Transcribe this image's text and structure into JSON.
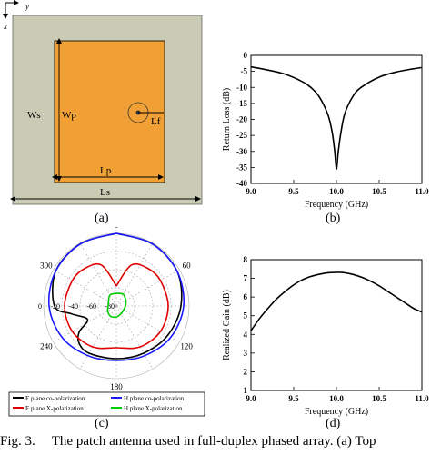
{
  "panels": {
    "a": {
      "label": "(a)",
      "axis_x": "x",
      "axis_y": "y",
      "labels": {
        "ws": "Ws",
        "wp": "Wp",
        "lf": "Lf",
        "lp": "Lp",
        "ls": "Ls"
      },
      "colors": {
        "substrate": "#c9cbb4",
        "patch": "#f0a035",
        "patch_border": "#2a1a00"
      }
    },
    "b": {
      "label": "(b)"
    },
    "c": {
      "label": "(c)",
      "angle_labels": [
        "0",
        "60",
        "120",
        "180",
        "240",
        "300"
      ],
      "radial_labels": [
        "0",
        "-20",
        "-40",
        "-60",
        "-80"
      ],
      "legend": [
        {
          "text": "E plane co-polarization",
          "color": "#000000"
        },
        {
          "text": "H plane co-polarization",
          "color": "#1a1aff"
        },
        {
          "text": "E plane X-polarization",
          "color": "#e00000"
        },
        {
          "text": "H plane X-polarization",
          "color": "#00cc00"
        }
      ]
    },
    "d": {
      "label": "(d)"
    }
  },
  "caption": {
    "fig": "Fig. 3.",
    "text": "The patch antenna used in full-duplex phased array. (a) Top"
  },
  "chart_data": [
    {
      "type": "line",
      "ylabel": "Return Loss (dB)",
      "xlabel": "Frequency (GHz)",
      "xlim": [
        9.0,
        11.0
      ],
      "ylim": [
        -40,
        0
      ],
      "xticks": [
        "9.0",
        "9.5",
        "10.0",
        "10.5",
        "11.0"
      ],
      "yticks": [
        "0",
        "-5",
        "-10",
        "-15",
        "-20",
        "-25",
        "-30",
        "-35",
        "-40"
      ],
      "series": [
        {
          "color": "#000000",
          "x": [
            9.0,
            9.2,
            9.4,
            9.6,
            9.7,
            9.8,
            9.9,
            9.95,
            9.98,
            10.0,
            10.02,
            10.05,
            10.1,
            10.2,
            10.3,
            10.5,
            10.7,
            10.9,
            11.0
          ],
          "y": [
            -3.6,
            -4.6,
            -5.9,
            -8.2,
            -10.0,
            -13.0,
            -18.5,
            -24.0,
            -30.0,
            -35.5,
            -30.5,
            -24.5,
            -18.0,
            -12.5,
            -9.8,
            -6.8,
            -5.2,
            -4.2,
            -3.8
          ]
        }
      ]
    },
    {
      "type": "line",
      "ylabel": "Realized Gain (dB)",
      "xlabel": "Frequency (GHz)",
      "xlim": [
        9.0,
        11.0
      ],
      "ylim": [
        1,
        8
      ],
      "xticks": [
        "9.0",
        "9.5",
        "10.0",
        "10.5",
        "11.0"
      ],
      "yticks": [
        "1",
        "2",
        "3",
        "4",
        "5",
        "6",
        "7",
        "8"
      ],
      "series": [
        {
          "color": "#000000",
          "x": [
            9.0,
            9.1,
            9.2,
            9.3,
            9.4,
            9.5,
            9.6,
            9.7,
            9.8,
            9.9,
            10.0,
            10.05,
            10.1,
            10.2,
            10.3,
            10.4,
            10.5,
            10.6,
            10.7,
            10.8,
            10.9,
            11.0
          ],
          "y": [
            4.2,
            4.85,
            5.4,
            5.9,
            6.3,
            6.65,
            6.92,
            7.1,
            7.22,
            7.3,
            7.32,
            7.32,
            7.3,
            7.2,
            7.05,
            6.85,
            6.6,
            6.3,
            6.0,
            5.7,
            5.4,
            5.2
          ]
        }
      ]
    },
    {
      "type": "polar",
      "rlim": [
        -80,
        0
      ],
      "series": [
        {
          "name": "E plane co-polarization",
          "color": "#000000",
          "theta": [
            0,
            30,
            60,
            90,
            120,
            150,
            180,
            210,
            225,
            235,
            245,
            260,
            270,
            300,
            330,
            360
          ],
          "r": [
            0,
            -1,
            -3,
            -9,
            -15,
            -20,
            -22,
            -20,
            -22,
            -30,
            -45,
            -30,
            -12,
            -3,
            -1,
            0
          ]
        },
        {
          "name": "H plane co-polarization",
          "color": "#1a1aff",
          "theta": [
            0,
            30,
            60,
            90,
            120,
            150,
            180,
            210,
            240,
            270,
            300,
            330,
            360
          ],
          "r": [
            0,
            -1,
            -3,
            -6,
            -11,
            -17,
            -20,
            -17,
            -11,
            -6,
            -3,
            -1,
            0
          ]
        },
        {
          "name": "E plane X-polarization",
          "color": "#e00000",
          "theta": [
            0,
            20,
            40,
            60,
            90,
            120,
            150,
            180,
            210,
            240,
            270,
            300,
            320,
            340,
            360
          ],
          "r": [
            -58,
            -32,
            -26,
            -24,
            -23,
            -24,
            -28,
            -34,
            -28,
            -24,
            -23,
            -24,
            -26,
            -32,
            -58
          ]
        },
        {
          "name": "H plane X-polarization",
          "color": "#00cc00",
          "theta": [
            0,
            30,
            60,
            90,
            120,
            150,
            180,
            210,
            240,
            270,
            300,
            330,
            360
          ],
          "r": [
            -66,
            -65,
            -68,
            -70,
            -71,
            -70,
            -68,
            -67,
            -69,
            -71,
            -70,
            -66,
            -66
          ]
        }
      ]
    }
  ]
}
